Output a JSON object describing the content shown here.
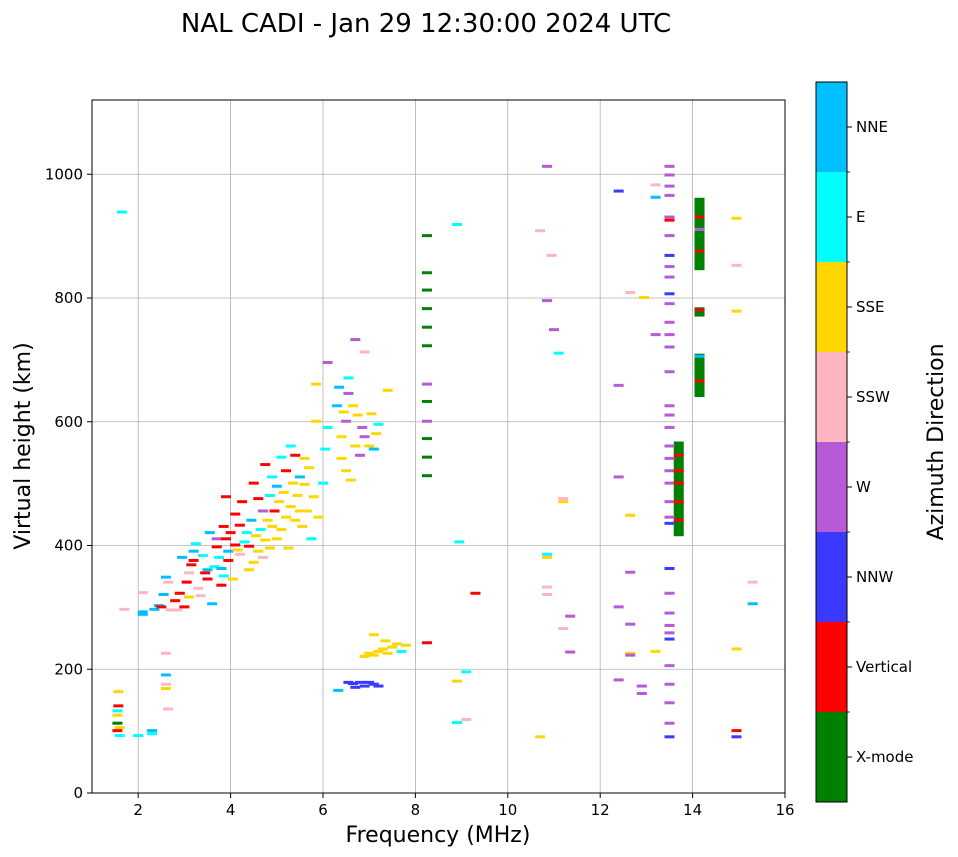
{
  "chart_data": {
    "type": "scatter",
    "title": "NAL CADI - Jan 29 12:30:00 2024 UTC",
    "xlabel": "Frequency (MHz)",
    "ylabel": "Virtual height (km)",
    "xlim": [
      1,
      16
    ],
    "ylim": [
      0,
      1120
    ],
    "xticks": [
      2,
      4,
      6,
      8,
      10,
      12,
      14,
      16
    ],
    "yticks": [
      0,
      200,
      400,
      600,
      800,
      1000
    ],
    "grid": true,
    "colorbar": {
      "title": "Azimuth Direction",
      "categories": [
        {
          "name": "X-mode",
          "color": "#008000"
        },
        {
          "name": "Vertical",
          "color": "#ff0000"
        },
        {
          "name": "NNW",
          "color": "#3a3aff"
        },
        {
          "name": "W",
          "color": "#b65ad6"
        },
        {
          "name": "SSW",
          "color": "#ffb6c1"
        },
        {
          "name": "SSE",
          "color": "#ffd700"
        },
        {
          "name": "E",
          "color": "#00ffff"
        },
        {
          "name": "NNE",
          "color": "#00bfff"
        }
      ]
    },
    "points": [
      [
        1.55,
        100,
        "Vertical"
      ],
      [
        1.55,
        112,
        "X-mode"
      ],
      [
        1.6,
        92,
        "E"
      ],
      [
        1.55,
        125,
        "SSE"
      ],
      [
        1.57,
        140,
        "Vertical"
      ],
      [
        1.57,
        163,
        "SSE"
      ],
      [
        1.55,
        132,
        "E"
      ],
      [
        1.6,
        105,
        "SSE"
      ],
      [
        1.65,
        938,
        "E"
      ],
      [
        2.3,
        95,
        "E"
      ],
      [
        2.3,
        100,
        "NNE"
      ],
      [
        2.0,
        92,
        "E"
      ],
      [
        2.6,
        190,
        "NNE"
      ],
      [
        2.6,
        175,
        "SSW"
      ],
      [
        2.6,
        168,
        "SSE"
      ],
      [
        2.65,
        135,
        "SSW"
      ],
      [
        2.6,
        225,
        "SSW"
      ],
      [
        1.7,
        296,
        "SSW"
      ],
      [
        2.1,
        292,
        "NNE"
      ],
      [
        2.1,
        288,
        "NNE"
      ],
      [
        2.1,
        323,
        "SSW"
      ],
      [
        2.35,
        296,
        "NNE"
      ],
      [
        2.45,
        302,
        "NNE"
      ],
      [
        2.5,
        300,
        "Vertical"
      ],
      [
        2.55,
        320,
        "NNE"
      ],
      [
        2.6,
        348,
        "NNE"
      ],
      [
        2.65,
        340,
        "SSW"
      ],
      [
        2.7,
        295,
        "SSW"
      ],
      [
        2.8,
        310,
        "Vertical"
      ],
      [
        2.85,
        295,
        "SSW"
      ],
      [
        2.9,
        322,
        "Vertical"
      ],
      [
        2.95,
        380,
        "NNE"
      ],
      [
        3.0,
        300,
        "Vertical"
      ],
      [
        3.05,
        340,
        "Vertical"
      ],
      [
        3.1,
        355,
        "SSW"
      ],
      [
        3.1,
        316,
        "SSE"
      ],
      [
        3.15,
        368,
        "Vertical"
      ],
      [
        3.2,
        375,
        "Vertical"
      ],
      [
        3.2,
        390,
        "NNE"
      ],
      [
        3.25,
        402,
        "E"
      ],
      [
        3.3,
        330,
        "SSW"
      ],
      [
        3.35,
        318,
        "SSW"
      ],
      [
        3.4,
        383,
        "E"
      ],
      [
        3.45,
        355,
        "Vertical"
      ],
      [
        3.5,
        345,
        "Vertical"
      ],
      [
        3.5,
        360,
        "NNE"
      ],
      [
        3.55,
        420,
        "NNE"
      ],
      [
        3.6,
        305,
        "NNE"
      ],
      [
        3.65,
        365,
        "E"
      ],
      [
        3.7,
        397,
        "Vertical"
      ],
      [
        3.7,
        410,
        "W"
      ],
      [
        3.75,
        380,
        "E"
      ],
      [
        3.8,
        335,
        "Vertical"
      ],
      [
        3.8,
        362,
        "NNE"
      ],
      [
        3.85,
        430,
        "Vertical"
      ],
      [
        3.85,
        350,
        "E"
      ],
      [
        3.9,
        410,
        "Vertical"
      ],
      [
        3.9,
        478,
        "Vertical"
      ],
      [
        3.95,
        375,
        "Vertical"
      ],
      [
        3.95,
        390,
        "NNE"
      ],
      [
        4.0,
        420,
        "Vertical"
      ],
      [
        4.05,
        345,
        "SSE"
      ],
      [
        4.1,
        400,
        "Vertical"
      ],
      [
        4.1,
        450,
        "Vertical"
      ],
      [
        4.15,
        392,
        "SSE"
      ],
      [
        4.2,
        385,
        "SSW"
      ],
      [
        4.2,
        432,
        "Vertical"
      ],
      [
        4.25,
        470,
        "Vertical"
      ],
      [
        4.3,
        405,
        "E"
      ],
      [
        4.35,
        420,
        "E"
      ],
      [
        4.4,
        360,
        "SSE"
      ],
      [
        4.4,
        398,
        "Vertical"
      ],
      [
        4.45,
        440,
        "NNE"
      ],
      [
        4.5,
        372,
        "SSE"
      ],
      [
        4.5,
        500,
        "Vertical"
      ],
      [
        4.55,
        415,
        "SSE"
      ],
      [
        4.6,
        390,
        "SSE"
      ],
      [
        4.6,
        475,
        "Vertical"
      ],
      [
        4.65,
        425,
        "E"
      ],
      [
        4.7,
        380,
        "SSW"
      ],
      [
        4.7,
        455,
        "W"
      ],
      [
        4.75,
        408,
        "SSE"
      ],
      [
        4.75,
        530,
        "Vertical"
      ],
      [
        4.8,
        440,
        "SSE"
      ],
      [
        4.85,
        395,
        "SSE"
      ],
      [
        4.85,
        480,
        "E"
      ],
      [
        4.9,
        430,
        "SSE"
      ],
      [
        4.9,
        510,
        "E"
      ],
      [
        4.95,
        455,
        "Vertical"
      ],
      [
        5.0,
        410,
        "SSE"
      ],
      [
        5.0,
        495,
        "NNE"
      ],
      [
        5.05,
        470,
        "SSE"
      ],
      [
        5.1,
        425,
        "SSE"
      ],
      [
        5.1,
        542,
        "E"
      ],
      [
        5.15,
        485,
        "SSE"
      ],
      [
        5.2,
        445,
        "SSE"
      ],
      [
        5.2,
        520,
        "Vertical"
      ],
      [
        5.25,
        395,
        "SSE"
      ],
      [
        5.3,
        462,
        "SSE"
      ],
      [
        5.3,
        560,
        "E"
      ],
      [
        5.35,
        500,
        "SSE"
      ],
      [
        5.4,
        440,
        "SSE"
      ],
      [
        5.4,
        545,
        "Vertical"
      ],
      [
        5.45,
        480,
        "SSE"
      ],
      [
        5.5,
        455,
        "SSE"
      ],
      [
        5.5,
        510,
        "NNE"
      ],
      [
        5.55,
        430,
        "SSE"
      ],
      [
        5.6,
        498,
        "SSE"
      ],
      [
        5.6,
        540,
        "SSE"
      ],
      [
        5.65,
        455,
        "SSE"
      ],
      [
        5.7,
        525,
        "SSE"
      ],
      [
        5.75,
        410,
        "E"
      ],
      [
        5.8,
        478,
        "SSE"
      ],
      [
        5.85,
        600,
        "SSE"
      ],
      [
        5.85,
        660,
        "SSE"
      ],
      [
        5.9,
        445,
        "SSE"
      ],
      [
        6.0,
        500,
        "E"
      ],
      [
        6.05,
        555,
        "E"
      ],
      [
        6.1,
        590,
        "E"
      ],
      [
        6.1,
        695,
        "W"
      ],
      [
        6.3,
        625,
        "NNE"
      ],
      [
        6.35,
        655,
        "NNE"
      ],
      [
        6.4,
        575,
        "SSE"
      ],
      [
        6.4,
        540,
        "SSE"
      ],
      [
        6.45,
        615,
        "SSE"
      ],
      [
        6.5,
        520,
        "SSE"
      ],
      [
        6.5,
        600,
        "W"
      ],
      [
        6.55,
        645,
        "W"
      ],
      [
        6.55,
        670,
        "E"
      ],
      [
        6.6,
        505,
        "SSE"
      ],
      [
        6.65,
        625,
        "SSE"
      ],
      [
        6.7,
        560,
        "SSE"
      ],
      [
        6.7,
        732,
        "W"
      ],
      [
        6.75,
        610,
        "SSE"
      ],
      [
        6.8,
        545,
        "W"
      ],
      [
        6.85,
        590,
        "W"
      ],
      [
        6.9,
        575,
        "W"
      ],
      [
        6.9,
        712,
        "SSW"
      ],
      [
        7.0,
        560,
        "SSE"
      ],
      [
        7.05,
        612,
        "SSE"
      ],
      [
        7.1,
        555,
        "NNE"
      ],
      [
        7.15,
        580,
        "SSE"
      ],
      [
        7.2,
        595,
        "E"
      ],
      [
        7.4,
        650,
        "SSE"
      ],
      [
        6.33,
        165,
        "NNE"
      ],
      [
        6.55,
        178,
        "NNW"
      ],
      [
        6.65,
        176,
        "NNW"
      ],
      [
        6.7,
        170,
        "NNW"
      ],
      [
        6.8,
        178,
        "NNW"
      ],
      [
        6.9,
        172,
        "NNW"
      ],
      [
        7.0,
        178,
        "NNW"
      ],
      [
        7.1,
        175,
        "NNW"
      ],
      [
        7.2,
        172,
        "NNW"
      ],
      [
        6.9,
        220,
        "SSE"
      ],
      [
        7.0,
        225,
        "SSE"
      ],
      [
        7.1,
        222,
        "SSE"
      ],
      [
        7.2,
        228,
        "SSE"
      ],
      [
        7.3,
        232,
        "SSE"
      ],
      [
        7.4,
        225,
        "SSE"
      ],
      [
        7.5,
        235,
        "SSE"
      ],
      [
        7.6,
        240,
        "SSE"
      ],
      [
        7.7,
        228,
        "E"
      ],
      [
        7.8,
        238,
        "SSE"
      ],
      [
        7.1,
        255,
        "SSE"
      ],
      [
        7.35,
        245,
        "SSE"
      ],
      [
        8.25,
        900,
        "X-mode"
      ],
      [
        8.25,
        840,
        "X-mode"
      ],
      [
        8.25,
        812,
        "X-mode"
      ],
      [
        8.25,
        782,
        "X-mode"
      ],
      [
        8.25,
        752,
        "X-mode"
      ],
      [
        8.25,
        722,
        "X-mode"
      ],
      [
        8.25,
        660,
        "W"
      ],
      [
        8.25,
        632,
        "X-mode"
      ],
      [
        8.25,
        600,
        "W"
      ],
      [
        8.25,
        572,
        "X-mode"
      ],
      [
        8.25,
        542,
        "X-mode"
      ],
      [
        8.25,
        512,
        "X-mode"
      ],
      [
        8.25,
        242,
        "Vertical"
      ],
      [
        8.9,
        918,
        "E"
      ],
      [
        8.95,
        405,
        "E"
      ],
      [
        8.9,
        180,
        "SSE"
      ],
      [
        8.9,
        113,
        "E"
      ],
      [
        9.1,
        195,
        "E"
      ],
      [
        9.1,
        118,
        "SSW"
      ],
      [
        9.3,
        322,
        "Vertical"
      ],
      [
        10.85,
        1012,
        "W"
      ],
      [
        10.7,
        908,
        "SSW"
      ],
      [
        10.95,
        868,
        "SSW"
      ],
      [
        10.85,
        795,
        "W"
      ],
      [
        11.0,
        748,
        "W"
      ],
      [
        11.1,
        710,
        "E"
      ],
      [
        11.2,
        470,
        "SSE"
      ],
      [
        11.2,
        475,
        "SSW"
      ],
      [
        10.85,
        385,
        "E"
      ],
      [
        10.85,
        380,
        "SSE"
      ],
      [
        10.85,
        332,
        "SSW"
      ],
      [
        10.85,
        320,
        "SSW"
      ],
      [
        11.35,
        285,
        "W"
      ],
      [
        11.2,
        265,
        "SSW"
      ],
      [
        11.35,
        227,
        "W"
      ],
      [
        10.7,
        90,
        "SSE"
      ],
      [
        12.4,
        972,
        "NNW"
      ],
      [
        12.4,
        658,
        "W"
      ],
      [
        12.4,
        510,
        "W"
      ],
      [
        12.4,
        300,
        "W"
      ],
      [
        12.4,
        182,
        "W"
      ],
      [
        12.65,
        808,
        "SSW"
      ],
      [
        12.65,
        448,
        "SSE"
      ],
      [
        12.65,
        356,
        "W"
      ],
      [
        12.65,
        272,
        "W"
      ],
      [
        12.65,
        225,
        "SSE"
      ],
      [
        12.65,
        222,
        "W"
      ],
      [
        12.9,
        172,
        "W"
      ],
      [
        12.9,
        160,
        "W"
      ],
      [
        12.95,
        800,
        "SSE"
      ],
      [
        13.2,
        982,
        "SSW"
      ],
      [
        13.2,
        962,
        "NNE"
      ],
      [
        13.2,
        740,
        "W"
      ],
      [
        13.2,
        228,
        "SSE"
      ],
      [
        13.5,
        1012,
        "W"
      ],
      [
        13.5,
        998,
        "W"
      ],
      [
        13.5,
        980,
        "W"
      ],
      [
        13.5,
        965,
        "W"
      ],
      [
        13.5,
        930,
        "W"
      ],
      [
        13.5,
        925,
        "Vertical"
      ],
      [
        13.5,
        900,
        "W"
      ],
      [
        13.5,
        868,
        "NNW"
      ],
      [
        13.5,
        850,
        "W"
      ],
      [
        13.5,
        833,
        "W"
      ],
      [
        13.5,
        806,
        "NNW"
      ],
      [
        13.5,
        790,
        "W"
      ],
      [
        13.5,
        760,
        "W"
      ],
      [
        13.5,
        740,
        "W"
      ],
      [
        13.5,
        720,
        "W"
      ],
      [
        13.5,
        680,
        "W"
      ],
      [
        13.5,
        625,
        "W"
      ],
      [
        13.5,
        610,
        "W"
      ],
      [
        13.5,
        590,
        "W"
      ],
      [
        13.5,
        560,
        "W"
      ],
      [
        13.5,
        540,
        "W"
      ],
      [
        13.5,
        520,
        "W"
      ],
      [
        13.5,
        500,
        "W"
      ],
      [
        13.5,
        470,
        "W"
      ],
      [
        13.5,
        445,
        "W"
      ],
      [
        13.5,
        435,
        "NNW"
      ],
      [
        13.5,
        362,
        "NNW"
      ],
      [
        13.5,
        322,
        "W"
      ],
      [
        13.5,
        290,
        "W"
      ],
      [
        13.5,
        270,
        "W"
      ],
      [
        13.5,
        258,
        "W"
      ],
      [
        13.5,
        248,
        "NNW"
      ],
      [
        13.5,
        205,
        "W"
      ],
      [
        13.5,
        175,
        "W"
      ],
      [
        13.5,
        145,
        "W"
      ],
      [
        13.5,
        112,
        "W"
      ],
      [
        13.5,
        90,
        "NNW"
      ],
      [
        14.95,
        928,
        "SSE"
      ],
      [
        14.95,
        852,
        "SSW"
      ],
      [
        14.95,
        778,
        "SSE"
      ],
      [
        14.95,
        232,
        "SSE"
      ],
      [
        14.95,
        100,
        "Vertical"
      ],
      [
        14.95,
        90,
        "NNW"
      ],
      [
        15.3,
        340,
        "SSW"
      ],
      [
        15.3,
        305,
        "NNE"
      ]
    ],
    "blocks": [
      [
        13.7,
        415,
        568,
        "X-mode"
      ],
      [
        14.15,
        640,
        710,
        "X-mode"
      ],
      [
        14.15,
        770,
        785,
        "X-mode"
      ],
      [
        14.15,
        845,
        962,
        "X-mode"
      ]
    ],
    "block_marks": [
      [
        13.7,
        545,
        "Vertical"
      ],
      [
        13.7,
        520,
        "Vertical"
      ],
      [
        13.7,
        500,
        "Vertical"
      ],
      [
        13.7,
        470,
        "Vertical"
      ],
      [
        13.7,
        440,
        "Vertical"
      ],
      [
        14.15,
        705,
        "NNE"
      ],
      [
        14.15,
        665,
        "Vertical"
      ],
      [
        14.15,
        780,
        "Vertical"
      ],
      [
        14.15,
        930,
        "Vertical"
      ],
      [
        14.15,
        910,
        "W"
      ],
      [
        14.15,
        875,
        "Vertical"
      ]
    ]
  }
}
